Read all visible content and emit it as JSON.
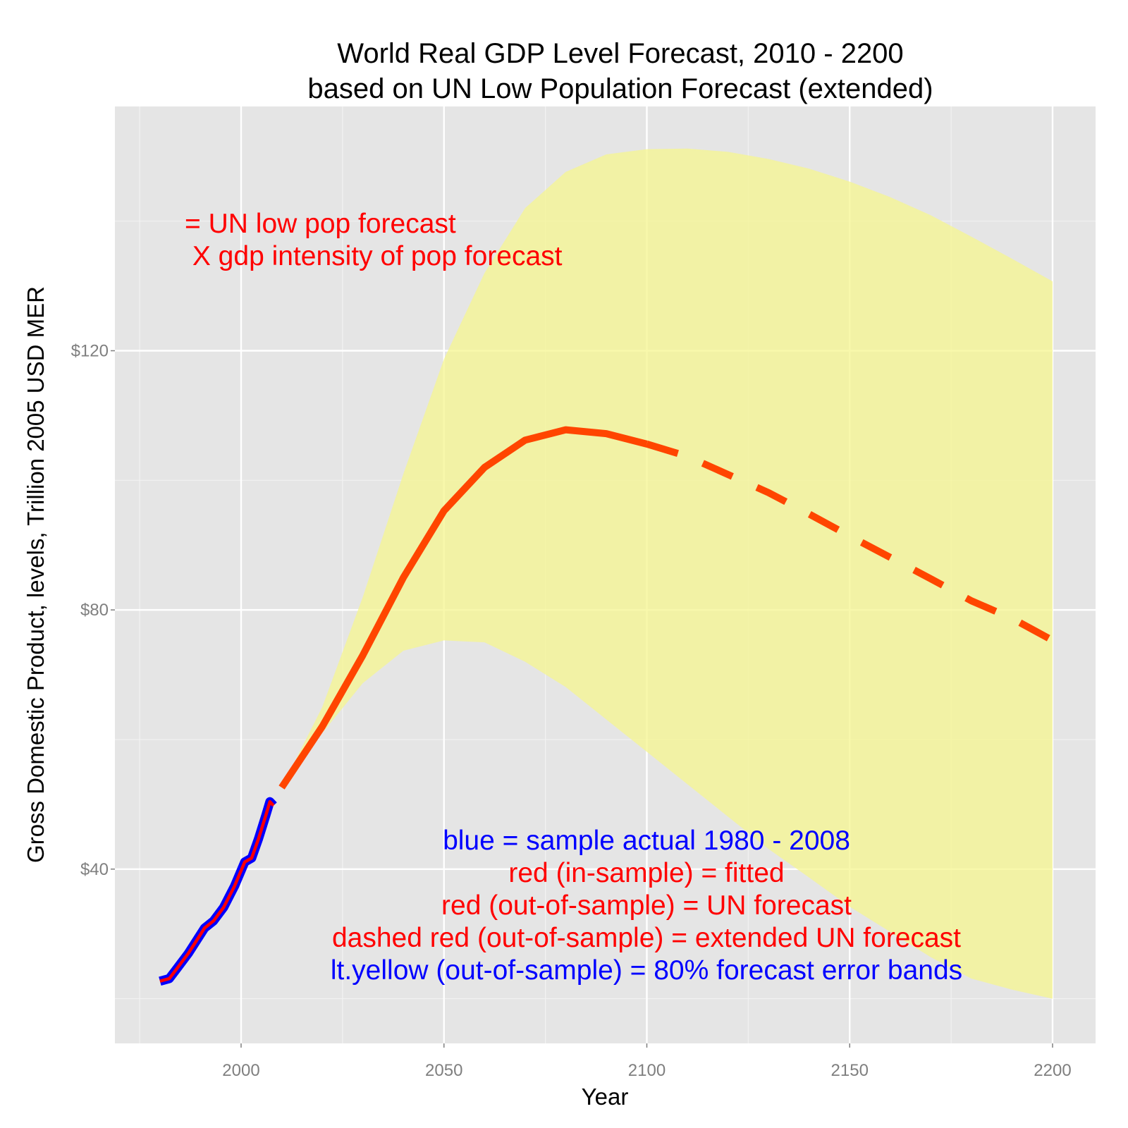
{
  "chart_data": {
    "type": "line",
    "title": [
      "World Real GDP Level Forecast, 2010 - 2200",
      "based on UN Low Population Forecast (extended)"
    ],
    "xlabel": "Year",
    "ylabel": "Gross Domestic Product, levels, Trillion 2005 USD MER",
    "xlim": [
      1968.9,
      2210.6
    ],
    "ylim": [
      13.1,
      157.7
    ],
    "x_ticks": [
      2000,
      2050,
      2100,
      2150,
      2200
    ],
    "x_tick_labels": [
      "2000",
      "2050",
      "2100",
      "2150",
      "2200"
    ],
    "y_ticks": [
      40,
      80,
      120
    ],
    "y_tick_labels": [
      "$40",
      "$80",
      "$120"
    ],
    "grid": true,
    "background": "#e5e5e5",
    "series": [
      {
        "role": "actual",
        "color": "#0000ff",
        "style": "solid",
        "x": [
          1980,
          1982.3,
          1984,
          1987,
          1991,
          1993.2,
          1995.7,
          1998.4,
          2000.9,
          2002.6,
          2004.3,
          2006.1,
          2007.1,
          2008
        ],
        "y": [
          22.7,
          23.1,
          24.5,
          27,
          30.9,
          32,
          34.1,
          37.4,
          41.1,
          41.7,
          44.7,
          48.3,
          50.4,
          49.8
        ]
      },
      {
        "role": "fitted",
        "color": "#ff0000",
        "style": "solid",
        "x": [
          1980,
          1982.3,
          1984,
          1987,
          1991,
          1993.2,
          1995.7,
          1998.4,
          2000.9,
          2002.6,
          2004.3,
          2006.1,
          2007.1,
          2008
        ],
        "y": [
          22.7,
          23.1,
          24.5,
          27,
          30.9,
          32,
          34.1,
          37.4,
          41.1,
          41.7,
          44.7,
          48.3,
          50.4,
          49.8
        ]
      },
      {
        "role": "UN forecast",
        "color": "#ff4500",
        "style": "solid",
        "x": [
          2010,
          2020,
          2030,
          2040,
          2050,
          2060,
          2070,
          2080,
          2090,
          2100
        ],
        "y": [
          52.6,
          62,
          73,
          85,
          95.3,
          102,
          106.2,
          107.8,
          107.2,
          105.6
        ]
      },
      {
        "role": "extended UN forecast",
        "color": "#ff4500",
        "style": "dashed",
        "x": [
          2100,
          2110,
          2120,
          2130,
          2140,
          2150,
          2160,
          2170,
          2180,
          2190,
          2200
        ],
        "y": [
          105.6,
          103.7,
          100.9,
          98.1,
          94.8,
          91.4,
          88.1,
          84.8,
          81.4,
          78.7,
          75.3
        ]
      }
    ],
    "band": {
      "role": "80% forecast error bands",
      "color": "#f5f58f",
      "x": [
        2010,
        2020,
        2030,
        2040,
        2050,
        2060,
        2070,
        2080,
        2090,
        2100,
        2110,
        2120,
        2130,
        2140,
        2150,
        2160,
        2170,
        2180,
        2190,
        2200
      ],
      "upper": [
        52.6,
        65,
        82,
        101,
        118.7,
        132,
        142,
        147.6,
        150.3,
        151.1,
        151.2,
        150.7,
        149.6,
        148.1,
        146.1,
        143.7,
        140.9,
        137.6,
        134.2,
        130.7
      ],
      "lower": [
        52.6,
        61,
        68.7,
        73.7,
        75.3,
        75,
        72,
        68.1,
        63.1,
        58.1,
        53.1,
        48.1,
        43.1,
        38.7,
        34.2,
        30.3,
        26.4,
        23.1,
        21.4,
        20
      ]
    },
    "annotations": {
      "top": [
        {
          "text": "= UN low pop forecast",
          "color": "#ff0000"
        },
        {
          "text": " X gdp intensity of pop forecast",
          "color": "#ff0000"
        }
      ],
      "legend_text": [
        {
          "text": "blue = sample actual 1980 - 2008",
          "color": "#0000ff"
        },
        {
          "text": "red (in-sample) = fitted",
          "color": "#ff0000"
        },
        {
          "text": "red (out-of-sample) = UN forecast",
          "color": "#ff0000"
        },
        {
          "text": "dashed red (out-of-sample) = extended UN forecast",
          "color": "#ff0000"
        },
        {
          "text": "lt.yellow (out-of-sample) = 80% forecast error bands",
          "color": "#0000ff"
        }
      ]
    }
  }
}
